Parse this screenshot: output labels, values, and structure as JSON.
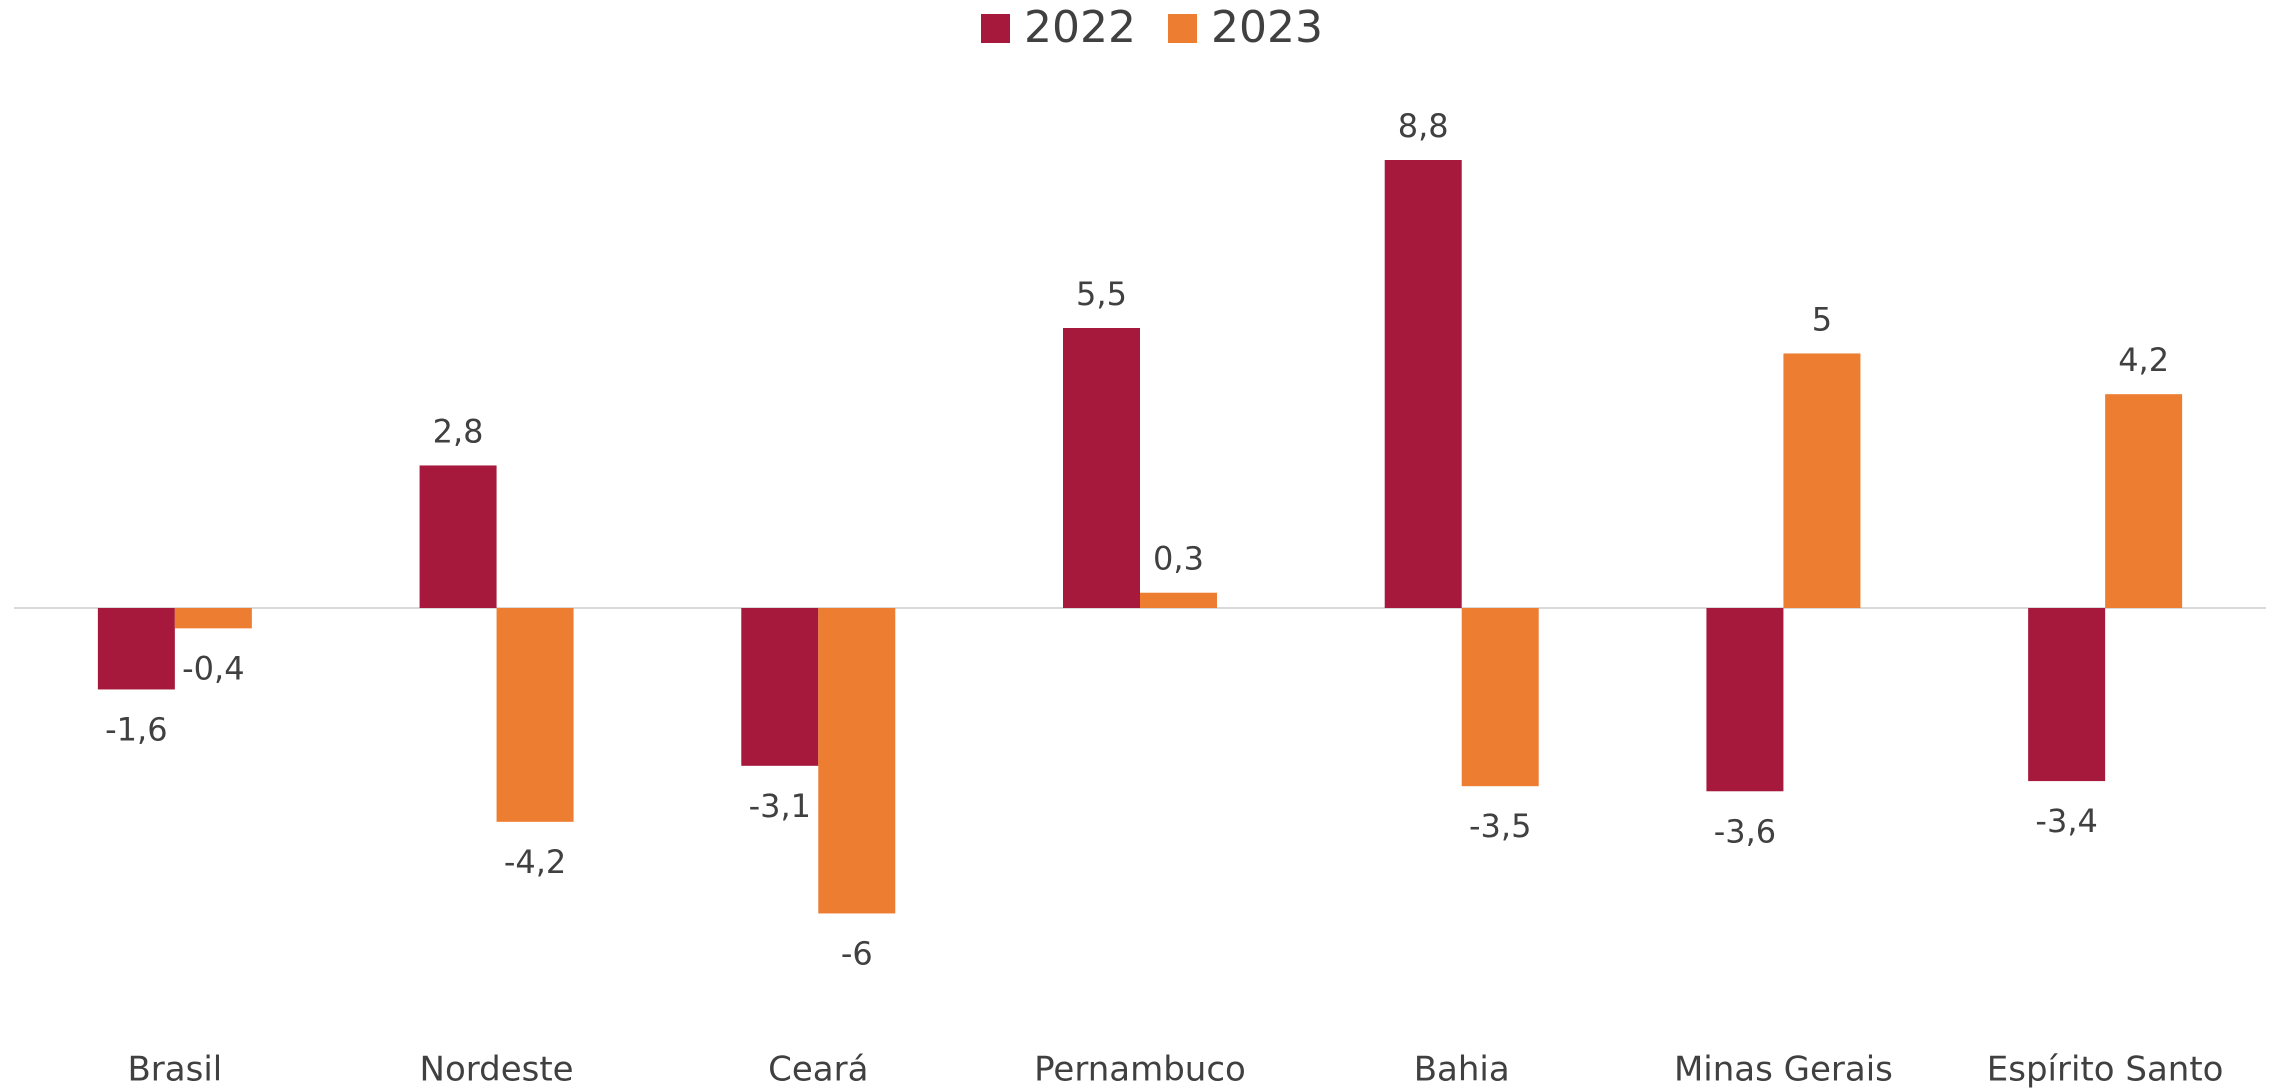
{
  "chart_data": {
    "type": "bar",
    "categories": [
      "Brasil",
      "Nordeste",
      "Ceará",
      "Pernambuco",
      "Bahia",
      "Minas Gerais",
      "Espírito Santo"
    ],
    "series": [
      {
        "name": "2022",
        "color": "#a6193c",
        "values": [
          -1.6,
          2.8,
          -3.1,
          5.5,
          8.8,
          -3.6,
          -3.4
        ],
        "value_labels": [
          "-1,6",
          "2,8",
          "-3,1",
          "5,5",
          "8,8",
          "-3,6",
          "-3,4"
        ]
      },
      {
        "name": "2023",
        "color": "#ed7d31",
        "values": [
          -0.4,
          -4.2,
          -6,
          0.3,
          -3.5,
          5,
          4.2
        ],
        "value_labels": [
          "-0,4",
          "-4,2",
          "-6",
          "0,3",
          "-3,5",
          "5",
          "4,2"
        ]
      }
    ],
    "legend": "top"
  }
}
